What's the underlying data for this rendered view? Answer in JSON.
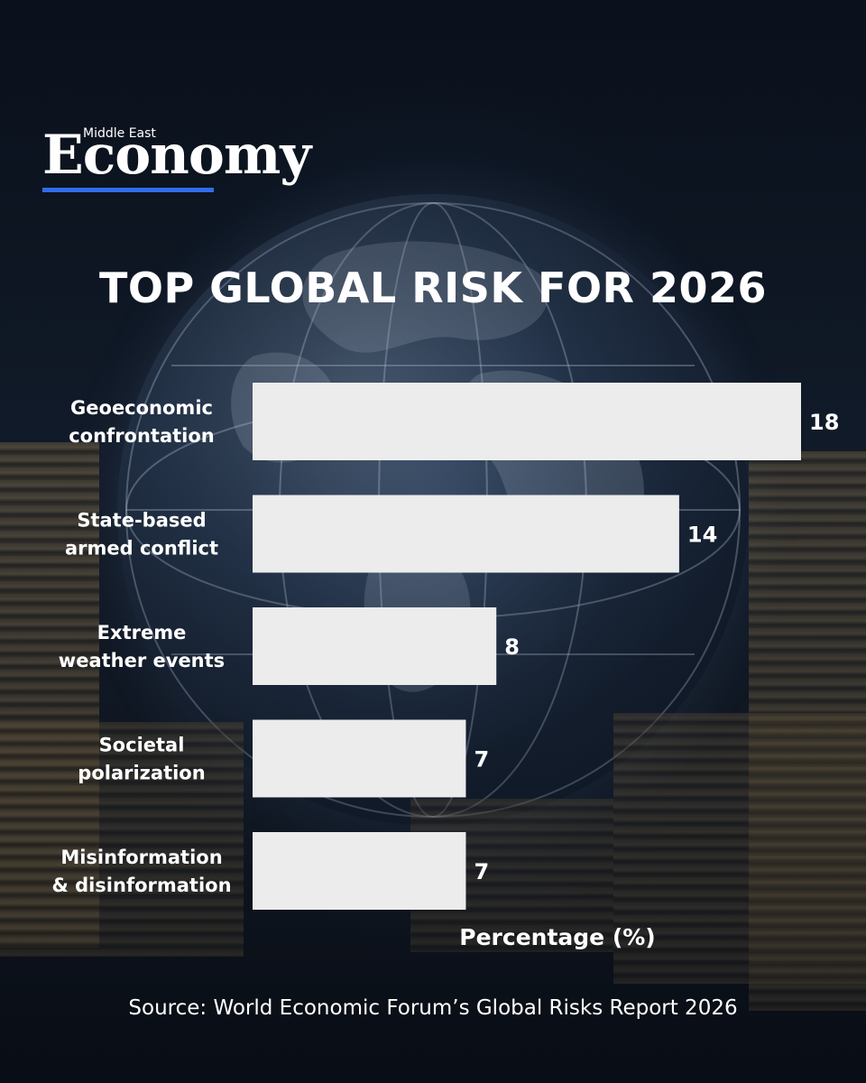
{
  "brand": {
    "small": "Middle East",
    "big": "Economy",
    "accent": "#2f6df0"
  },
  "chart_data": {
    "type": "bar",
    "orientation": "horizontal",
    "title": "TOP GLOBAL RISK FOR 2026",
    "xlabel": "Percentage (%)",
    "ylabel": "",
    "categories": [
      [
        "Geoeconomic",
        "confrontation"
      ],
      [
        "State-based",
        "armed conflict"
      ],
      [
        "Extreme",
        "weather events"
      ],
      [
        "Societal",
        "polarization"
      ],
      [
        "Misinformation",
        "& disinformation"
      ]
    ],
    "values": [
      18,
      14,
      8,
      7,
      7
    ],
    "value_labels": [
      "18",
      "14",
      "8",
      "7",
      "7"
    ],
    "xlim": [
      0,
      18
    ],
    "grid": false,
    "legend": "none",
    "bar_color": "#ececec"
  },
  "source": "Source: World Economic Forum’s Global Risks Report 2026"
}
